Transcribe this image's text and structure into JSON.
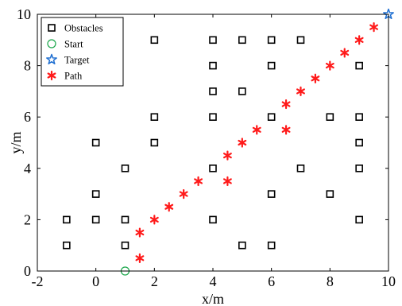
{
  "chart_data": {
    "type": "scatter",
    "xlabel": "x/m",
    "ylabel": "y/m",
    "xlim": [
      -2,
      10
    ],
    "ylim": [
      0,
      10
    ],
    "xticks": [
      -2,
      0,
      2,
      4,
      6,
      8,
      10
    ],
    "yticks": [
      0,
      2,
      4,
      6,
      8,
      10
    ],
    "grid": false,
    "legend_position": "top-left",
    "series": [
      {
        "name": "Obstacles",
        "marker": "square",
        "color": "#000000",
        "points": [
          [
            -1,
            1
          ],
          [
            -1,
            2
          ],
          [
            0,
            2
          ],
          [
            0,
            3
          ],
          [
            0,
            5
          ],
          [
            1,
            1
          ],
          [
            1,
            2
          ],
          [
            1,
            4
          ],
          [
            2,
            5
          ],
          [
            2,
            6
          ],
          [
            2,
            9
          ],
          [
            4,
            2
          ],
          [
            4,
            4
          ],
          [
            4,
            6
          ],
          [
            4,
            7
          ],
          [
            4,
            8
          ],
          [
            4,
            9
          ],
          [
            5,
            1
          ],
          [
            5,
            7
          ],
          [
            5,
            9
          ],
          [
            6,
            1
          ],
          [
            6,
            3
          ],
          [
            6,
            6
          ],
          [
            6,
            8
          ],
          [
            6,
            9
          ],
          [
            7,
            4
          ],
          [
            7,
            9
          ],
          [
            8,
            3
          ],
          [
            8,
            6
          ],
          [
            9,
            2
          ],
          [
            9,
            4
          ],
          [
            9,
            5
          ],
          [
            9,
            6
          ],
          [
            9,
            8
          ]
        ]
      },
      {
        "name": "Start",
        "marker": "circle",
        "color": "#1aa64a",
        "points": [
          [
            1,
            0
          ]
        ]
      },
      {
        "name": "Target",
        "marker": "pentagram",
        "color": "#1f6fd1",
        "points": [
          [
            10,
            10
          ]
        ]
      },
      {
        "name": "Path",
        "marker": "asterisk",
        "color": "#ff1a1a",
        "points": [
          [
            1.5,
            0.5
          ],
          [
            1.5,
            1.5
          ],
          [
            2,
            2
          ],
          [
            2.5,
            2.5
          ],
          [
            3,
            3
          ],
          [
            3.5,
            3.5
          ],
          [
            4.5,
            3.5
          ],
          [
            4.5,
            4.5
          ],
          [
            5,
            5
          ],
          [
            5.5,
            5.5
          ],
          [
            6.5,
            5.5
          ],
          [
            6.5,
            6.5
          ],
          [
            7,
            7
          ],
          [
            7.5,
            7.5
          ],
          [
            8,
            8
          ],
          [
            8.5,
            8.5
          ],
          [
            9,
            9
          ],
          [
            9.5,
            9.5
          ]
        ]
      }
    ]
  }
}
